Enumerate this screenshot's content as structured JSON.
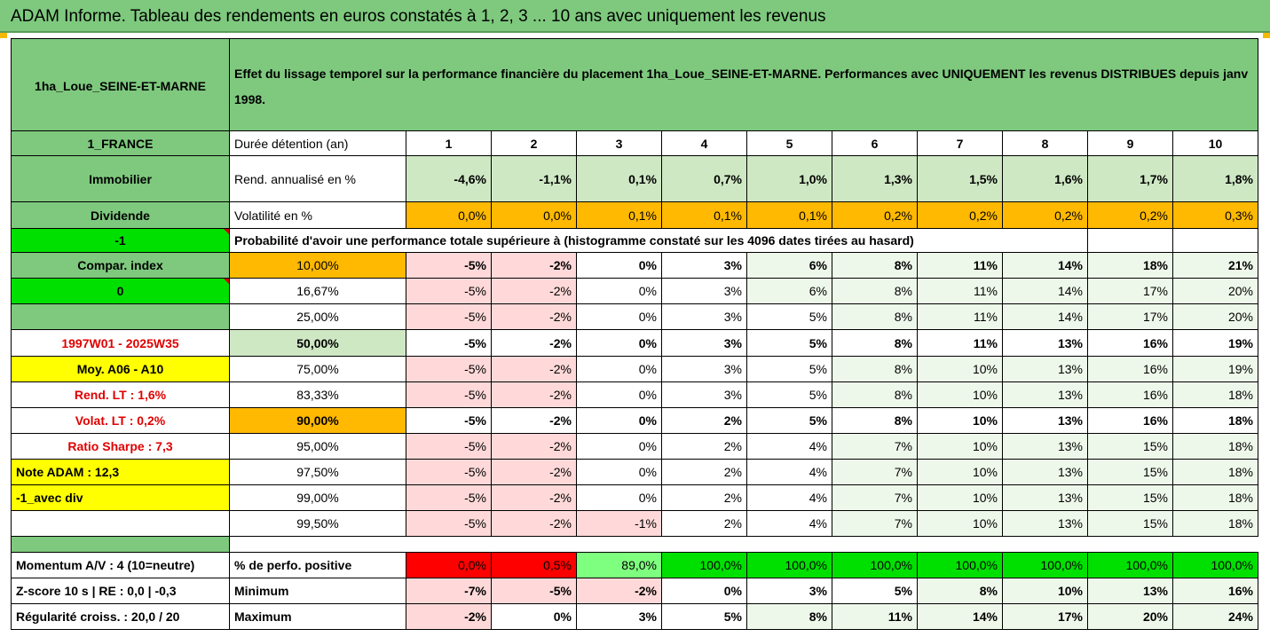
{
  "title": "ADAM Informe. Tableau des rendements en euros constatés à 1, 2, 3 ... 10 ans avec uniquement les revenus",
  "fund_name": "1ha_Loue_SEINE-ET-MARNE",
  "description": "Effet du lissage temporel sur la performance financière du placement 1ha_Loue_SEINE-ET-MARNE. Performances avec UNIQUEMENT les revenus DISTRIBUES depuis janv 1998.",
  "side": {
    "country": "1_FRANCE",
    "asset_class": "Immobilier",
    "income_type": "Dividende",
    "flag_value": "-1",
    "compar_label": "Compar. index",
    "compar_value": "0",
    "period": "1997W01 - 2025W35",
    "moy_label": "Moy. A06 - A10",
    "rend_lt": "Rend. LT :   1,6%",
    "volat_lt": "Volat. LT :   0,2%",
    "sharpe": "Ratio Sharpe :   7,3",
    "note_adam": "Note ADAM : 12,3",
    "avec_div": "-1_avec div",
    "momentum": "Momentum A/V : 4 (10=neutre)",
    "zscore": "Z-score 10 s  |  RE : 0,0  |  -0,3",
    "regularite": "Régularité croiss. : 20,0 / 20"
  },
  "header": {
    "duree_label": "Durée détention (an)",
    "years": [
      "1",
      "2",
      "3",
      "4",
      "5",
      "6",
      "7",
      "8",
      "9",
      "10"
    ]
  },
  "rend": {
    "label": "Rend. annualisé en %",
    "values": [
      "-4,6%",
      "-1,1%",
      "0,1%",
      "0,7%",
      "1,0%",
      "1,3%",
      "1,5%",
      "1,6%",
      "1,7%",
      "1,8%"
    ]
  },
  "volat": {
    "label": "Volatilité en %",
    "values": [
      "0,0%",
      "0,0%",
      "0,1%",
      "0,1%",
      "0,1%",
      "0,2%",
      "0,2%",
      "0,2%",
      "0,2%",
      "0,3%"
    ]
  },
  "prob_title": "Probabilité d'avoir une performance totale supérieure à (histogramme constaté sur les 4096 dates tirées au hasard)",
  "percentiles": [
    {
      "p": "10,00%",
      "values": [
        "-5%",
        "-2%",
        "0%",
        "3%",
        "6%",
        "8%",
        "11%",
        "14%",
        "18%",
        "21%"
      ]
    },
    {
      "p": "16,67%",
      "values": [
        "-5%",
        "-2%",
        "0%",
        "3%",
        "6%",
        "8%",
        "11%",
        "14%",
        "17%",
        "20%"
      ]
    },
    {
      "p": "25,00%",
      "values": [
        "-5%",
        "-2%",
        "0%",
        "3%",
        "5%",
        "8%",
        "11%",
        "14%",
        "17%",
        "20%"
      ]
    },
    {
      "p": "50,00%",
      "values": [
        "-5%",
        "-2%",
        "0%",
        "3%",
        "5%",
        "8%",
        "11%",
        "13%",
        "16%",
        "19%"
      ]
    },
    {
      "p": "75,00%",
      "values": [
        "-5%",
        "-2%",
        "0%",
        "3%",
        "5%",
        "8%",
        "10%",
        "13%",
        "16%",
        "19%"
      ]
    },
    {
      "p": "83,33%",
      "values": [
        "-5%",
        "-2%",
        "0%",
        "3%",
        "5%",
        "8%",
        "10%",
        "13%",
        "16%",
        "18%"
      ]
    },
    {
      "p": "90,00%",
      "values": [
        "-5%",
        "-2%",
        "0%",
        "2%",
        "5%",
        "8%",
        "10%",
        "13%",
        "16%",
        "18%"
      ]
    },
    {
      "p": "95,00%",
      "values": [
        "-5%",
        "-2%",
        "0%",
        "2%",
        "4%",
        "7%",
        "10%",
        "13%",
        "15%",
        "18%"
      ]
    },
    {
      "p": "97,50%",
      "values": [
        "-5%",
        "-2%",
        "0%",
        "2%",
        "4%",
        "7%",
        "10%",
        "13%",
        "15%",
        "18%"
      ]
    },
    {
      "p": "99,00%",
      "values": [
        "-5%",
        "-2%",
        "0%",
        "2%",
        "4%",
        "7%",
        "10%",
        "13%",
        "15%",
        "18%"
      ]
    },
    {
      "p": "99,50%",
      "values": [
        "-5%",
        "-2%",
        "-1%",
        "2%",
        "4%",
        "7%",
        "10%",
        "13%",
        "15%",
        "18%"
      ]
    }
  ],
  "positive": {
    "label": "% de perfo. positive",
    "values": [
      "0,0%",
      "0,5%",
      "89,0%",
      "100,0%",
      "100,0%",
      "100,0%",
      "100,0%",
      "100,0%",
      "100,0%",
      "100,0%"
    ]
  },
  "minimum": {
    "label": "Minimum",
    "values": [
      "-7%",
      "-5%",
      "-2%",
      "0%",
      "3%",
      "5%",
      "8%",
      "10%",
      "13%",
      "16%"
    ]
  },
  "maximum": {
    "label": "Maximum",
    "values": [
      "-2%",
      "0%",
      "3%",
      "5%",
      "8%",
      "11%",
      "14%",
      "17%",
      "20%",
      "24%"
    ]
  },
  "colors": {
    "header_green": "#7ec97e",
    "light_green": "#cfe8c4",
    "orange": "#ffb900",
    "bright_green": "#00e000",
    "yellow": "#ffff00",
    "red_text": "#e00000",
    "neg_pink": "#ffd9d9",
    "pale_green": "#eef8ea"
  }
}
